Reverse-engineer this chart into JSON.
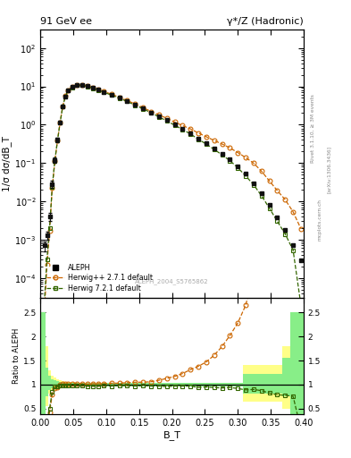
{
  "title_left": "91 GeV ee",
  "title_right": "γ*/Z (Hadronic)",
  "ylabel_main": "1/σ dσ/dB_T",
  "ylabel_ratio": "Ratio to ALEPH",
  "xlabel": "B_T",
  "right_label": "Rivet 3.1.10, ≥ 3M events",
  "watermark": "ALEPH_2004_S5765862",
  "arxiv": "[arXiv:1306.3436]",
  "mcplots": "mcplots.cern.ch",
  "aleph_x": [
    0.006,
    0.01,
    0.014,
    0.018,
    0.022,
    0.026,
    0.03,
    0.034,
    0.038,
    0.042,
    0.048,
    0.056,
    0.064,
    0.072,
    0.08,
    0.088,
    0.096,
    0.108,
    0.12,
    0.132,
    0.144,
    0.156,
    0.168,
    0.18,
    0.192,
    0.204,
    0.216,
    0.228,
    0.24,
    0.252,
    0.264,
    0.276,
    0.288,
    0.3,
    0.312,
    0.324,
    0.336,
    0.348,
    0.36,
    0.372,
    0.384,
    0.396
  ],
  "aleph_y": [
    0.0007,
    0.0013,
    0.004,
    0.028,
    0.12,
    0.4,
    1.15,
    3.0,
    5.5,
    7.8,
    9.5,
    10.8,
    10.8,
    10.2,
    9.2,
    8.2,
    7.2,
    6.1,
    5.0,
    4.1,
    3.3,
    2.65,
    2.1,
    1.65,
    1.3,
    1.0,
    0.77,
    0.59,
    0.44,
    0.33,
    0.24,
    0.175,
    0.122,
    0.082,
    0.052,
    0.03,
    0.016,
    0.008,
    0.0038,
    0.0018,
    0.0007,
    0.00028
  ],
  "aleph_yerr": [
    0.0002,
    0.0003,
    0.001,
    0.006,
    0.02,
    0.06,
    0.1,
    0.2,
    0.3,
    0.4,
    0.4,
    0.4,
    0.35,
    0.3,
    0.25,
    0.22,
    0.19,
    0.16,
    0.13,
    0.1,
    0.08,
    0.065,
    0.05,
    0.04,
    0.032,
    0.025,
    0.019,
    0.015,
    0.011,
    0.008,
    0.006,
    0.004,
    0.003,
    0.002,
    0.0013,
    0.0008,
    0.0004,
    0.0002,
    0.0001,
    5e-05,
    2e-05,
    8e-06
  ],
  "hwpp_x": [
    0.006,
    0.01,
    0.014,
    0.018,
    0.022,
    0.026,
    0.03,
    0.034,
    0.038,
    0.042,
    0.048,
    0.056,
    0.064,
    0.072,
    0.08,
    0.088,
    0.096,
    0.108,
    0.12,
    0.132,
    0.144,
    0.156,
    0.168,
    0.18,
    0.192,
    0.204,
    0.216,
    0.228,
    0.24,
    0.252,
    0.264,
    0.276,
    0.288,
    0.3,
    0.312,
    0.324,
    0.336,
    0.348,
    0.36,
    0.372,
    0.384,
    0.396
  ],
  "hwpp_y": [
    1.2e-05,
    0.00022,
    0.0017,
    0.022,
    0.112,
    0.38,
    1.15,
    3.03,
    5.55,
    7.88,
    9.6,
    11.0,
    11.0,
    10.3,
    9.38,
    8.36,
    7.34,
    6.29,
    5.15,
    4.27,
    3.46,
    2.78,
    2.22,
    1.8,
    1.47,
    1.17,
    0.946,
    0.773,
    0.608,
    0.484,
    0.387,
    0.313,
    0.247,
    0.187,
    0.138,
    0.099,
    0.061,
    0.034,
    0.019,
    0.011,
    0.0053,
    0.0019
  ],
  "hw7_x": [
    0.006,
    0.01,
    0.014,
    0.018,
    0.022,
    0.026,
    0.03,
    0.034,
    0.038,
    0.042,
    0.048,
    0.056,
    0.064,
    0.072,
    0.08,
    0.088,
    0.096,
    0.108,
    0.12,
    0.132,
    0.144,
    0.156,
    0.168,
    0.18,
    0.192,
    0.204,
    0.216,
    0.228,
    0.24,
    0.252,
    0.264,
    0.276,
    0.288,
    0.3,
    0.312,
    0.324,
    0.336,
    0.348,
    0.36,
    0.372,
    0.384,
    0.396
  ],
  "hw7_y": [
    2.3e-05,
    0.0003,
    0.002,
    0.024,
    0.115,
    0.384,
    1.14,
    2.97,
    5.44,
    7.72,
    9.4,
    10.6,
    10.6,
    9.91,
    8.93,
    7.99,
    7.06,
    5.92,
    4.9,
    4.02,
    3.21,
    2.6,
    2.04,
    1.6,
    1.25,
    0.97,
    0.748,
    0.573,
    0.414,
    0.313,
    0.226,
    0.163,
    0.115,
    0.075,
    0.046,
    0.027,
    0.014,
    0.0066,
    0.003,
    0.0014,
    0.00053,
    1.9e-05
  ],
  "ratio_hwpp": [
    0.017,
    0.17,
    0.43,
    0.79,
    0.93,
    0.95,
    1.0,
    1.01,
    1.01,
    1.01,
    1.01,
    1.02,
    1.02,
    1.01,
    1.02,
    1.02,
    1.02,
    1.03,
    1.03,
    1.04,
    1.05,
    1.05,
    1.06,
    1.09,
    1.13,
    1.17,
    1.23,
    1.31,
    1.38,
    1.47,
    1.61,
    1.79,
    2.02,
    2.28,
    2.65,
    3.3,
    3.81,
    4.25,
    5.0,
    6.1,
    7.57,
    6.79
  ],
  "ratio_hw7": [
    0.033,
    0.23,
    0.5,
    0.86,
    0.96,
    0.96,
    0.99,
    0.99,
    0.99,
    0.99,
    0.99,
    0.98,
    0.98,
    0.97,
    0.97,
    0.97,
    0.98,
    0.97,
    0.98,
    0.98,
    0.97,
    0.98,
    0.97,
    0.97,
    0.96,
    0.97,
    0.97,
    0.97,
    0.94,
    0.95,
    0.94,
    0.93,
    0.94,
    0.92,
    0.89,
    0.9,
    0.875,
    0.825,
    0.789,
    0.778,
    0.757,
    0.068
  ],
  "hwpp_color": "#cc6600",
  "hw7_color": "#336600",
  "aleph_color": "#111111",
  "band_yellow": "#ffff88",
  "band_green": "#88ee88",
  "xlim": [
    0.0,
    0.4
  ],
  "ylim_main": [
    3e-05,
    300.0
  ],
  "ylim_ratio": [
    0.38,
    2.8
  ],
  "band_x_lo": [
    0.0,
    0.004,
    0.008,
    0.012,
    0.016,
    0.02,
    0.024,
    0.028,
    0.032,
    0.036,
    0.04,
    0.044,
    0.052,
    0.06,
    0.068,
    0.076,
    0.084,
    0.092,
    0.104,
    0.116,
    0.128,
    0.14,
    0.152,
    0.164,
    0.176,
    0.188,
    0.2,
    0.212,
    0.224,
    0.236,
    0.248,
    0.26,
    0.272,
    0.284,
    0.296,
    0.308,
    0.32,
    0.332,
    0.344,
    0.356,
    0.368,
    0.38,
    0.392
  ],
  "band_x_hi": [
    0.004,
    0.008,
    0.012,
    0.016,
    0.02,
    0.024,
    0.028,
    0.032,
    0.036,
    0.04,
    0.044,
    0.052,
    0.06,
    0.068,
    0.076,
    0.084,
    0.092,
    0.104,
    0.116,
    0.128,
    0.14,
    0.152,
    0.164,
    0.176,
    0.188,
    0.2,
    0.212,
    0.224,
    0.236,
    0.248,
    0.26,
    0.272,
    0.284,
    0.296,
    0.308,
    0.32,
    0.332,
    0.344,
    0.356,
    0.368,
    0.38,
    0.392,
    0.4
  ],
  "band_green_lo": [
    0.38,
    0.38,
    0.75,
    0.88,
    0.92,
    0.93,
    0.94,
    0.95,
    0.96,
    0.96,
    0.97,
    0.97,
    0.97,
    0.97,
    0.97,
    0.97,
    0.97,
    0.97,
    0.97,
    0.97,
    0.97,
    0.97,
    0.97,
    0.97,
    0.97,
    0.97,
    0.97,
    0.97,
    0.97,
    0.97,
    0.97,
    0.97,
    0.97,
    0.97,
    0.97,
    0.82,
    0.82,
    0.82,
    0.82,
    0.82,
    0.75,
    0.38,
    0.38
  ],
  "band_green_hi": [
    2.5,
    2.5,
    1.35,
    1.18,
    1.12,
    1.09,
    1.07,
    1.06,
    1.05,
    1.04,
    1.04,
    1.03,
    1.03,
    1.03,
    1.03,
    1.03,
    1.03,
    1.03,
    1.03,
    1.03,
    1.03,
    1.03,
    1.03,
    1.03,
    1.03,
    1.03,
    1.03,
    1.03,
    1.03,
    1.03,
    1.03,
    1.03,
    1.03,
    1.03,
    1.03,
    1.22,
    1.22,
    1.22,
    1.22,
    1.22,
    1.55,
    2.5,
    2.5
  ],
  "band_yellow_lo": [
    0.38,
    0.38,
    0.55,
    0.82,
    0.88,
    0.9,
    0.92,
    0.93,
    0.94,
    0.95,
    0.95,
    0.96,
    0.96,
    0.96,
    0.96,
    0.96,
    0.96,
    0.96,
    0.96,
    0.96,
    0.96,
    0.96,
    0.96,
    0.96,
    0.96,
    0.96,
    0.96,
    0.96,
    0.96,
    0.96,
    0.96,
    0.96,
    0.96,
    0.96,
    0.96,
    0.65,
    0.65,
    0.65,
    0.65,
    0.65,
    0.5,
    0.38,
    0.38
  ],
  "band_yellow_hi": [
    2.5,
    2.5,
    1.8,
    1.3,
    1.18,
    1.14,
    1.11,
    1.09,
    1.07,
    1.06,
    1.06,
    1.05,
    1.04,
    1.04,
    1.04,
    1.04,
    1.04,
    1.04,
    1.04,
    1.04,
    1.04,
    1.04,
    1.04,
    1.04,
    1.04,
    1.04,
    1.04,
    1.04,
    1.04,
    1.04,
    1.04,
    1.04,
    1.04,
    1.04,
    1.04,
    1.4,
    1.4,
    1.4,
    1.4,
    1.4,
    1.8,
    2.5,
    2.5
  ]
}
